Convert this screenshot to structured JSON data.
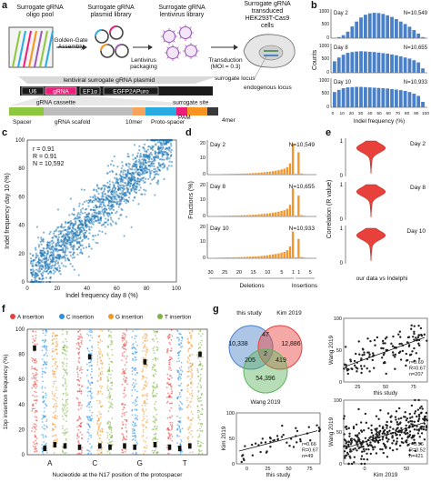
{
  "panels": {
    "a": {
      "label": "a",
      "titles": [
        "Surrogate gRNA\noligo pool",
        "Surrogate gRNA\nplasmid library",
        "Surrogate gRNA\nlentivirus library",
        "Surrogate gRNA\ntransduced\nHEK293T-Cas9\ncells"
      ],
      "steps": [
        "Golden-Gate\nAssembly",
        "Lentivirus\npackaging",
        "Transduction\n(MOI = 0.3)"
      ],
      "locus_labels": [
        "surrogate locus",
        "endogenous locus"
      ],
      "plasmid_title": "lentiviral surrogate gRNA plasmid",
      "plasmid_blocks": [
        "U6",
        "gRNA",
        "EF1α",
        "EGFP2APuro"
      ],
      "cassette_labels": [
        "gRNA cassette",
        "surrogate site"
      ],
      "bottom_labels": [
        "Spacer",
        "gRNA scafold",
        "10mer",
        "Proto-spacer",
        "PAM",
        "4mer"
      ],
      "colors": {
        "spacer": "#8dc63f",
        "scaffold": "#bdbdbd",
        "protospacer": "#29abe2",
        "pam": "#ed1e79",
        "grna": "#ed1e79",
        "tenmer": "#f7a35c",
        "fourmer": "#f7931e",
        "virus": "#9b59b6"
      }
    },
    "b": {
      "label": "b",
      "ylabel": "Counts",
      "xlabel": "Indel frequency (%)",
      "xticks": [
        "0",
        "10",
        "20",
        "30",
        "40",
        "50",
        "60",
        "70",
        "80",
        "90",
        "100"
      ],
      "color": "#4a80c8",
      "subplots": [
        {
          "name": "Day 2",
          "n_label": "N=10,549",
          "ymax_label": "1000",
          "mid_label": "500",
          "zero_label": "0"
        },
        {
          "name": "Day 8",
          "n_label": "N=10,655",
          "ymax_label": "1000",
          "mid_label": "500",
          "zero_label": "0"
        },
        {
          "name": "Day 10",
          "n_label": "N=10,933",
          "ymax_label": "1000",
          "mid_label": "500",
          "zero_label": "0"
        }
      ]
    },
    "c": {
      "label": "c",
      "stats": [
        "r = 0.91",
        "R = 0.91",
        "N = 10,592"
      ],
      "xlabel": "Indel frequency day 8 (%)",
      "ylabel": "Indel frequency day 10 (%)",
      "xticks": [
        "0",
        "20",
        "40",
        "60",
        "80",
        "100"
      ],
      "yticks": [
        "0",
        "20",
        "40",
        "60",
        "80",
        "100"
      ],
      "color": "#1f77b4"
    },
    "d": {
      "label": "d",
      "ylabel": "Fractions (%)",
      "xlabels": [
        "Deletions",
        "Insertions"
      ],
      "xticks": [
        "30",
        "25",
        "20",
        "15",
        "10",
        "5",
        "1",
        "1",
        "5"
      ],
      "color": "#f0962a",
      "subplots": [
        {
          "name": "Day 2",
          "n_label": "N=10,549",
          "ytick_top": "20",
          "ytick_mid": "10",
          "ytick_zero": "0"
        },
        {
          "name": "Day 8",
          "n_label": "N=10,655",
          "ytick_top": "20",
          "ytick_mid": "10",
          "ytick_zero": "0"
        },
        {
          "name": "Day 10",
          "n_label": "N=10,933",
          "ytick_top": "20",
          "ytick_mid": "10",
          "ytick_zero": "0"
        }
      ]
    },
    "e": {
      "label": "e",
      "ylabel": "Correlation (R value)",
      "xlabel": "our data vs Indelphi",
      "color": "#e8413c",
      "subplots": [
        {
          "name": "Day 2",
          "ytick_top": "1",
          "ytick_zero": "0"
        },
        {
          "name": "Day 8",
          "ytick_top": "1",
          "ytick_zero": "0"
        },
        {
          "name": "Day 10",
          "ytick_top": "1",
          "ytick_zero": "0"
        }
      ]
    },
    "f": {
      "label": "f",
      "legend": [
        {
          "name": "A insertion",
          "color": "#e8413c"
        },
        {
          "name": "C insertion",
          "color": "#2d8fe0"
        },
        {
          "name": "G insertion",
          "color": "#f0962a"
        },
        {
          "name": "T insertion",
          "color": "#7cb342"
        }
      ],
      "ylabel": "1bp insertion frequency (%)",
      "yticks": [
        "0",
        "20",
        "40",
        "60",
        "80",
        "100"
      ],
      "xlabel": "Nucleotide at the N17 position of the protospacer",
      "groups": [
        "A",
        "C",
        "G",
        "T"
      ]
    },
    "g": {
      "label": "g",
      "venn": {
        "sets": [
          "this study",
          "Kim 2019",
          "Wang 2019"
        ],
        "colors": [
          "#4a80c8",
          "#e8413c",
          "#5fb35f"
        ],
        "counts": [
          "10,338",
          "12,886",
          "54,396",
          "47",
          "205",
          "419",
          "2"
        ]
      },
      "scatters": [
        {
          "xlabel": "this study",
          "ylabel": "Wang 2019",
          "stats": [
            "r=0.69",
            "R=0.67",
            "n=207"
          ],
          "xticks": [
            "25",
            "50",
            "75"
          ],
          "yticks": [
            "0",
            "50",
            "100"
          ]
        },
        {
          "xlabel": "this study",
          "ylabel": "Kim 2019",
          "stats": [
            "r=0.66",
            "R=0.67",
            "n=49"
          ],
          "xticks": [
            "0",
            "25",
            "50",
            "75"
          ],
          "yticks": [
            "0",
            "50",
            "100"
          ]
        },
        {
          "xlabel": "Kim 2019",
          "ylabel": "Wang 2019",
          "stats": [
            "r=0.56",
            "R=0.52",
            "n=421"
          ],
          "xticks": [
            "0",
            "50"
          ],
          "yticks": [
            "0",
            "50",
            "100"
          ]
        }
      ]
    }
  },
  "chart_data": [
    {
      "type": "bar",
      "title": "Day 2",
      "xlabel": "Indel frequency (%)",
      "ylabel": "Counts",
      "categories": [
        "0",
        "5",
        "10",
        "15",
        "20",
        "25",
        "30",
        "35",
        "40",
        "45",
        "50",
        "55",
        "60",
        "65",
        "70",
        "75",
        "80",
        "85",
        "90",
        "95",
        "100"
      ],
      "values": [
        10,
        40,
        110,
        240,
        430,
        610,
        760,
        860,
        910,
        930,
        920,
        890,
        840,
        780,
        700,
        610,
        520,
        420,
        300,
        170,
        40
      ],
      "ylim": [
        0,
        1000
      ]
    },
    {
      "type": "bar",
      "title": "Day 8",
      "xlabel": "Indel frequency (%)",
      "ylabel": "Counts",
      "categories": [
        "0",
        "5",
        "10",
        "15",
        "20",
        "25",
        "30",
        "35",
        "40",
        "45",
        "50",
        "55",
        "60",
        "65",
        "70",
        "75",
        "80",
        "85",
        "90",
        "95",
        "100"
      ],
      "values": [
        420,
        560,
        660,
        730,
        760,
        780,
        790,
        780,
        770,
        760,
        740,
        720,
        700,
        670,
        640,
        600,
        560,
        520,
        460,
        380,
        160
      ],
      "ylim": [
        0,
        1000
      ]
    },
    {
      "type": "bar",
      "title": "Day 10",
      "xlabel": "Indel frequency (%)",
      "ylabel": "Counts",
      "categories": [
        "0",
        "5",
        "10",
        "15",
        "20",
        "25",
        "30",
        "35",
        "40",
        "45",
        "50",
        "55",
        "60",
        "65",
        "70",
        "75",
        "80",
        "85",
        "90",
        "95",
        "100"
      ],
      "values": [
        560,
        640,
        700,
        730,
        740,
        750,
        750,
        740,
        730,
        720,
        710,
        700,
        690,
        670,
        650,
        630,
        600,
        560,
        500,
        420,
        200
      ],
      "ylim": [
        0,
        1000
      ]
    },
    {
      "type": "bar",
      "title": "Day 2",
      "ylabel": "Fractions (%)",
      "values": [
        0.2,
        0.2,
        0.3,
        0.3,
        0.3,
        0.4,
        0.4,
        0.5,
        0.5,
        0.6,
        0.6,
        0.7,
        0.7,
        0.8,
        0.9,
        1.0,
        1.1,
        1.2,
        1.4,
        1.6,
        1.8,
        2.0,
        2.3,
        2.6,
        3.0,
        3.5,
        4.0,
        5.0,
        7.5,
        21.0,
        0.5,
        15.0,
        0.8,
        0.4,
        0.3,
        0.2,
        0.1
      ],
      "ylim": [
        0,
        22
      ]
    },
    {
      "type": "bar",
      "title": "Day 8",
      "ylabel": "Fractions (%)",
      "values": [
        0.3,
        0.3,
        0.3,
        0.4,
        0.4,
        0.5,
        0.5,
        0.6,
        0.6,
        0.7,
        0.7,
        0.8,
        0.9,
        0.9,
        1.0,
        1.1,
        1.2,
        1.4,
        1.6,
        1.8,
        2.0,
        2.2,
        2.5,
        2.8,
        3.2,
        3.7,
        4.2,
        5.2,
        7.8,
        19.0,
        0.6,
        14.0,
        0.9,
        0.5,
        0.3,
        0.2,
        0.1
      ],
      "ylim": [
        0,
        22
      ]
    },
    {
      "type": "bar",
      "title": "Day 10",
      "ylabel": "Fractions (%)",
      "values": [
        0.3,
        0.3,
        0.4,
        0.4,
        0.5,
        0.5,
        0.6,
        0.6,
        0.7,
        0.7,
        0.8,
        0.8,
        0.9,
        1.0,
        1.1,
        1.2,
        1.3,
        1.4,
        1.6,
        1.8,
        2.0,
        2.3,
        2.6,
        2.9,
        3.3,
        3.8,
        4.3,
        5.4,
        8.0,
        18.0,
        0.6,
        13.0,
        0.9,
        0.5,
        0.3,
        0.2,
        0.1
      ],
      "ylim": [
        0,
        22
      ]
    }
  ]
}
